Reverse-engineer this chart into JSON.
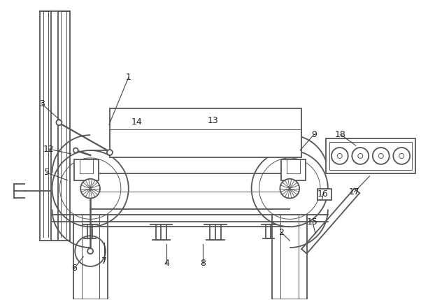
{
  "bg_color": "#ffffff",
  "line_color": "#555555",
  "line_width": 1.3,
  "thin_line": 0.7,
  "fig_width": 6.02,
  "fig_height": 4.29,
  "dpi": 100
}
